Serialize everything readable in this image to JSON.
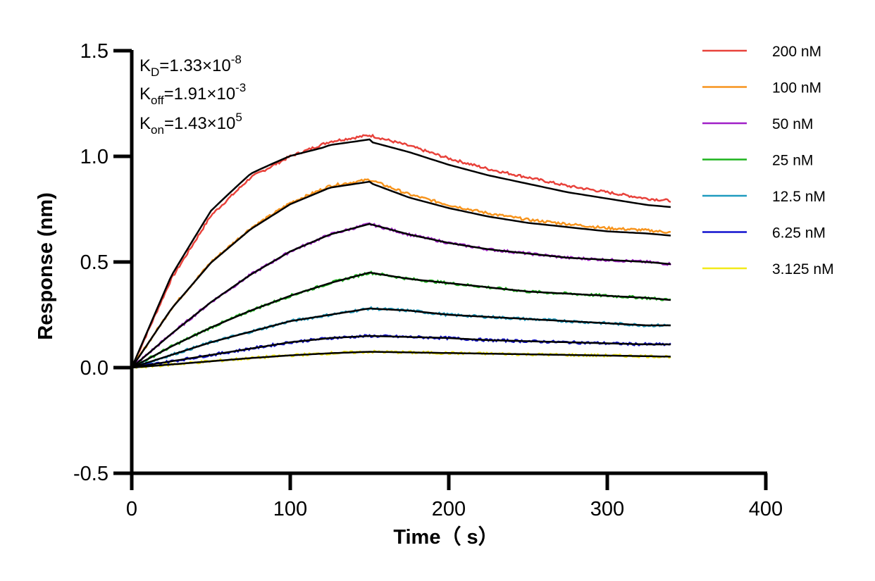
{
  "chart_data": {
    "type": "line",
    "xlabel": "Time（ s）",
    "ylabel": "Response (nm)",
    "xlim": [
      0,
      400
    ],
    "ylim": [
      -0.5,
      1.5
    ],
    "x_ticks": [
      "0",
      "100",
      "200",
      "300",
      "400"
    ],
    "y_ticks": [
      "-0.5",
      "0.0",
      "0.5",
      "1.0",
      "1.5"
    ],
    "grid": false,
    "legend_position": "right",
    "annotations": {
      "kd": {
        "base": "K",
        "sub": "D",
        "eq": "=1.33×10",
        "sup": "-8"
      },
      "koff": {
        "base": "K",
        "sub": "off",
        "eq": "=1.91×10",
        "sup": "-3"
      },
      "kon": {
        "base": "K",
        "sub": "on",
        "eq": "=1.43×10",
        "sup": "5"
      }
    },
    "association_end_s": 150,
    "end_s": 340,
    "series": [
      {
        "name": "200 nM",
        "color": "#e8423b",
        "points": [
          [
            0,
            0
          ],
          [
            25,
            0.42
          ],
          [
            50,
            0.72
          ],
          [
            75,
            0.9
          ],
          [
            100,
            1.0
          ],
          [
            125,
            1.07
          ],
          [
            150,
            1.1
          ],
          [
            175,
            1.05
          ],
          [
            200,
            0.99
          ],
          [
            225,
            0.94
          ],
          [
            250,
            0.9
          ],
          [
            275,
            0.86
          ],
          [
            300,
            0.83
          ],
          [
            325,
            0.8
          ],
          [
            340,
            0.79
          ]
        ]
      },
      {
        "name": "100 nM",
        "color": "#f7941d",
        "points": [
          [
            0,
            0
          ],
          [
            25,
            0.28
          ],
          [
            50,
            0.5
          ],
          [
            75,
            0.66
          ],
          [
            100,
            0.78
          ],
          [
            125,
            0.86
          ],
          [
            150,
            0.89
          ],
          [
            175,
            0.82
          ],
          [
            200,
            0.77
          ],
          [
            225,
            0.73
          ],
          [
            250,
            0.7
          ],
          [
            275,
            0.68
          ],
          [
            300,
            0.66
          ],
          [
            325,
            0.65
          ],
          [
            340,
            0.64
          ]
        ]
      },
      {
        "name": "50 nM",
        "color": "#a020c8",
        "points": [
          [
            0,
            0
          ],
          [
            25,
            0.16
          ],
          [
            50,
            0.31
          ],
          [
            75,
            0.44
          ],
          [
            100,
            0.55
          ],
          [
            125,
            0.63
          ],
          [
            150,
            0.68
          ],
          [
            175,
            0.63
          ],
          [
            200,
            0.59
          ],
          [
            225,
            0.56
          ],
          [
            250,
            0.54
          ],
          [
            275,
            0.52
          ],
          [
            300,
            0.51
          ],
          [
            325,
            0.5
          ],
          [
            340,
            0.49
          ]
        ]
      },
      {
        "name": "25 nM",
        "color": "#1db31d",
        "points": [
          [
            0,
            0
          ],
          [
            25,
            0.1
          ],
          [
            50,
            0.19
          ],
          [
            75,
            0.27
          ],
          [
            100,
            0.34
          ],
          [
            125,
            0.4
          ],
          [
            150,
            0.45
          ],
          [
            175,
            0.42
          ],
          [
            200,
            0.4
          ],
          [
            225,
            0.38
          ],
          [
            250,
            0.36
          ],
          [
            275,
            0.35
          ],
          [
            300,
            0.34
          ],
          [
            325,
            0.33
          ],
          [
            340,
            0.32
          ]
        ]
      },
      {
        "name": "12.5 nM",
        "color": "#1f9bbf",
        "points": [
          [
            0,
            0
          ],
          [
            25,
            0.06
          ],
          [
            50,
            0.12
          ],
          [
            75,
            0.17
          ],
          [
            100,
            0.22
          ],
          [
            125,
            0.25
          ],
          [
            150,
            0.28
          ],
          [
            175,
            0.27
          ],
          [
            200,
            0.25
          ],
          [
            225,
            0.24
          ],
          [
            250,
            0.23
          ],
          [
            275,
            0.22
          ],
          [
            300,
            0.21
          ],
          [
            325,
            0.2
          ],
          [
            340,
            0.2
          ]
        ]
      },
      {
        "name": "6.25 nM",
        "color": "#1212cf",
        "points": [
          [
            0,
            0
          ],
          [
            25,
            0.03
          ],
          [
            50,
            0.06
          ],
          [
            75,
            0.09
          ],
          [
            100,
            0.12
          ],
          [
            125,
            0.14
          ],
          [
            150,
            0.15
          ],
          [
            175,
            0.145
          ],
          [
            200,
            0.14
          ],
          [
            225,
            0.13
          ],
          [
            250,
            0.125
          ],
          [
            275,
            0.12
          ],
          [
            300,
            0.115
          ],
          [
            325,
            0.11
          ],
          [
            340,
            0.11
          ]
        ]
      },
      {
        "name": "3.125 nM",
        "color": "#f2ea19",
        "points": [
          [
            0,
            0
          ],
          [
            25,
            0.015
          ],
          [
            50,
            0.03
          ],
          [
            75,
            0.045
          ],
          [
            100,
            0.058
          ],
          [
            125,
            0.068
          ],
          [
            150,
            0.075
          ],
          [
            175,
            0.072
          ],
          [
            200,
            0.069
          ],
          [
            225,
            0.066
          ],
          [
            250,
            0.063
          ],
          [
            275,
            0.06
          ],
          [
            300,
            0.057
          ],
          [
            325,
            0.054
          ],
          [
            340,
            0.052
          ]
        ]
      }
    ],
    "fit_curves_color": "#000000"
  }
}
